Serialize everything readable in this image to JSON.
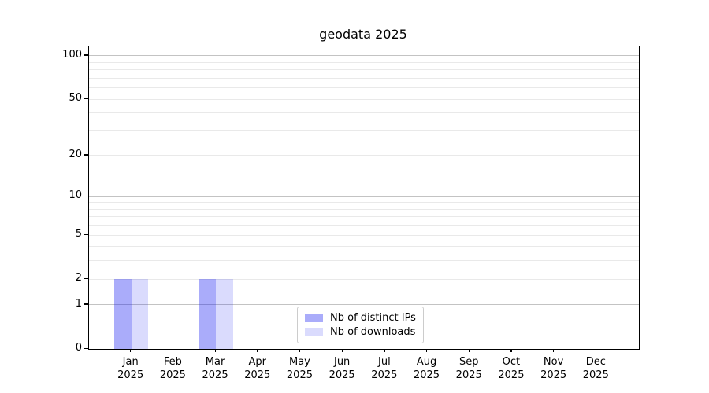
{
  "figure": {
    "background": "#ffffff",
    "text_color": "#000000"
  },
  "chart_data": {
    "type": "bar",
    "title": "geodata 2025",
    "categories": [
      "Jan",
      "Feb",
      "Mar",
      "Apr",
      "May",
      "Jun",
      "Jul",
      "Aug",
      "Sep",
      "Oct",
      "Nov",
      "Dec"
    ],
    "category_year": "2025",
    "series": [
      {
        "name": "Nb of distinct IPs",
        "color": "rgba(20,25,240,0.36)",
        "values": [
          2,
          0,
          2,
          0,
          0,
          0,
          0,
          0,
          0,
          0,
          0,
          0
        ]
      },
      {
        "name": "Nb of downloads",
        "color": "rgba(20,25,240,0.155)",
        "values": [
          2,
          0,
          2,
          0,
          0,
          0,
          0,
          0,
          0,
          0,
          0,
          0
        ]
      }
    ],
    "xlabel": "",
    "ylabel": "",
    "yscale": "log1p",
    "ylim": [
      0,
      116
    ],
    "yticks": [
      0,
      1,
      2,
      5,
      10,
      20,
      50,
      100
    ],
    "gridlines_major": [
      1,
      10,
      100
    ],
    "gridlines_minor": [
      2,
      3,
      4,
      5,
      6,
      7,
      8,
      9,
      20,
      30,
      40,
      50,
      60,
      70,
      80,
      90
    ],
    "grid": "horizontal only",
    "legend_position": "lower center inside plot",
    "colors": {
      "grid_major": "#c3c3c3",
      "grid_minor": "#e9e9e9",
      "spine": "#000000",
      "legend_border": "#cccccc"
    }
  }
}
